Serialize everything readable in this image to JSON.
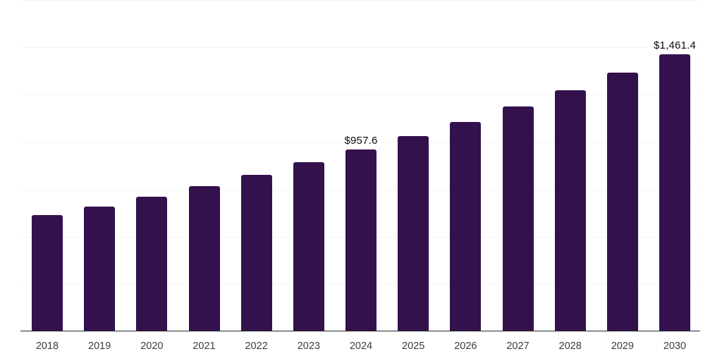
{
  "chart_data": {
    "type": "bar",
    "title": "",
    "xlabel": "",
    "ylabel": "",
    "categories": [
      "2018",
      "2019",
      "2020",
      "2021",
      "2022",
      "2023",
      "2024",
      "2025",
      "2026",
      "2027",
      "2028",
      "2029",
      "2030"
    ],
    "values": [
      609.0,
      654.2,
      708.1,
      761.9,
      823.7,
      889.2,
      957.6,
      1027.4,
      1102.3,
      1182.7,
      1268.9,
      1361.4,
      1461.4
    ],
    "data_labels": {
      "2024": "$957.6",
      "2030": "$1,461.4"
    },
    "ylim": [
      0,
      1750
    ],
    "gridline_step": 250,
    "grid": true,
    "legend": false,
    "y_axis_labels_visible": false,
    "colors": {
      "bar": "#33114d",
      "grid": "#f5f5f5",
      "axis": "#262626",
      "tick_label": "#3d3d3d",
      "data_label": "#0d0d0d"
    }
  }
}
